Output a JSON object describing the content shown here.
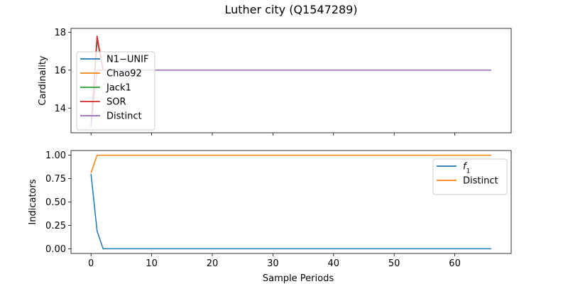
{
  "title": "Luther city (Q1547289)",
  "colors": {
    "blue": "#1f77b4",
    "orange": "#ff7f0e",
    "green": "#2ca02c",
    "red": "#d62728",
    "purple": "#9467bd"
  },
  "chart_data": [
    {
      "type": "line",
      "title": "",
      "xlabel": "",
      "ylabel": "Cardinality",
      "xlim": [
        -3.3,
        69.3
      ],
      "ylim": [
        12.7,
        18.2
      ],
      "xticks": [
        0,
        10,
        20,
        30,
        40,
        50,
        60
      ],
      "xtick_labels_visible": false,
      "yticks": [
        14,
        16,
        18
      ],
      "legend_position": "upper-left",
      "series": [
        {
          "name": "N1−UNIF",
          "color": "#1f77b4",
          "x": [
            0,
            1,
            2,
            66
          ],
          "y": [
            13,
            17.6,
            16,
            16
          ]
        },
        {
          "name": "Chao92",
          "color": "#ff7f0e",
          "x": [
            0,
            1,
            2,
            66
          ],
          "y": [
            13,
            17.7,
            16,
            16
          ]
        },
        {
          "name": "Jack1",
          "color": "#2ca02c",
          "x": [
            0,
            1,
            2,
            66
          ],
          "y": [
            13,
            17.7,
            16,
            16
          ]
        },
        {
          "name": "SOR",
          "color": "#d62728",
          "x": [
            0,
            1,
            2,
            66
          ],
          "y": [
            13,
            17.8,
            16,
            16
          ]
        },
        {
          "name": "Distinct",
          "color": "#9467bd",
          "x": [
            0,
            1,
            2,
            66
          ],
          "y": [
            13,
            16,
            16,
            16
          ]
        }
      ]
    },
    {
      "type": "line",
      "title": "",
      "xlabel": "Sample Periods",
      "ylabel": "Indicators",
      "xlim": [
        -3.3,
        69.3
      ],
      "ylim": [
        -0.05,
        1.05
      ],
      "xticks": [
        0,
        10,
        20,
        30,
        40,
        50,
        60
      ],
      "xtick_labels_visible": true,
      "yticks": [
        0.0,
        0.25,
        0.5,
        0.75,
        1.0
      ],
      "ytick_labels": [
        "0.00",
        "0.25",
        "0.50",
        "0.75",
        "1.00"
      ],
      "legend_position": "upper-right",
      "series": [
        {
          "name": "f1",
          "display_name": "f",
          "subscript": "1",
          "color": "#1f77b4",
          "x": [
            0,
            1,
            2,
            66
          ],
          "y": [
            0.8,
            0.19,
            0.0,
            0.0
          ]
        },
        {
          "name": "Distinct",
          "color": "#ff7f0e",
          "x": [
            0,
            1,
            2,
            66
          ],
          "y": [
            0.81,
            1.0,
            1.0,
            1.0
          ]
        }
      ]
    }
  ]
}
